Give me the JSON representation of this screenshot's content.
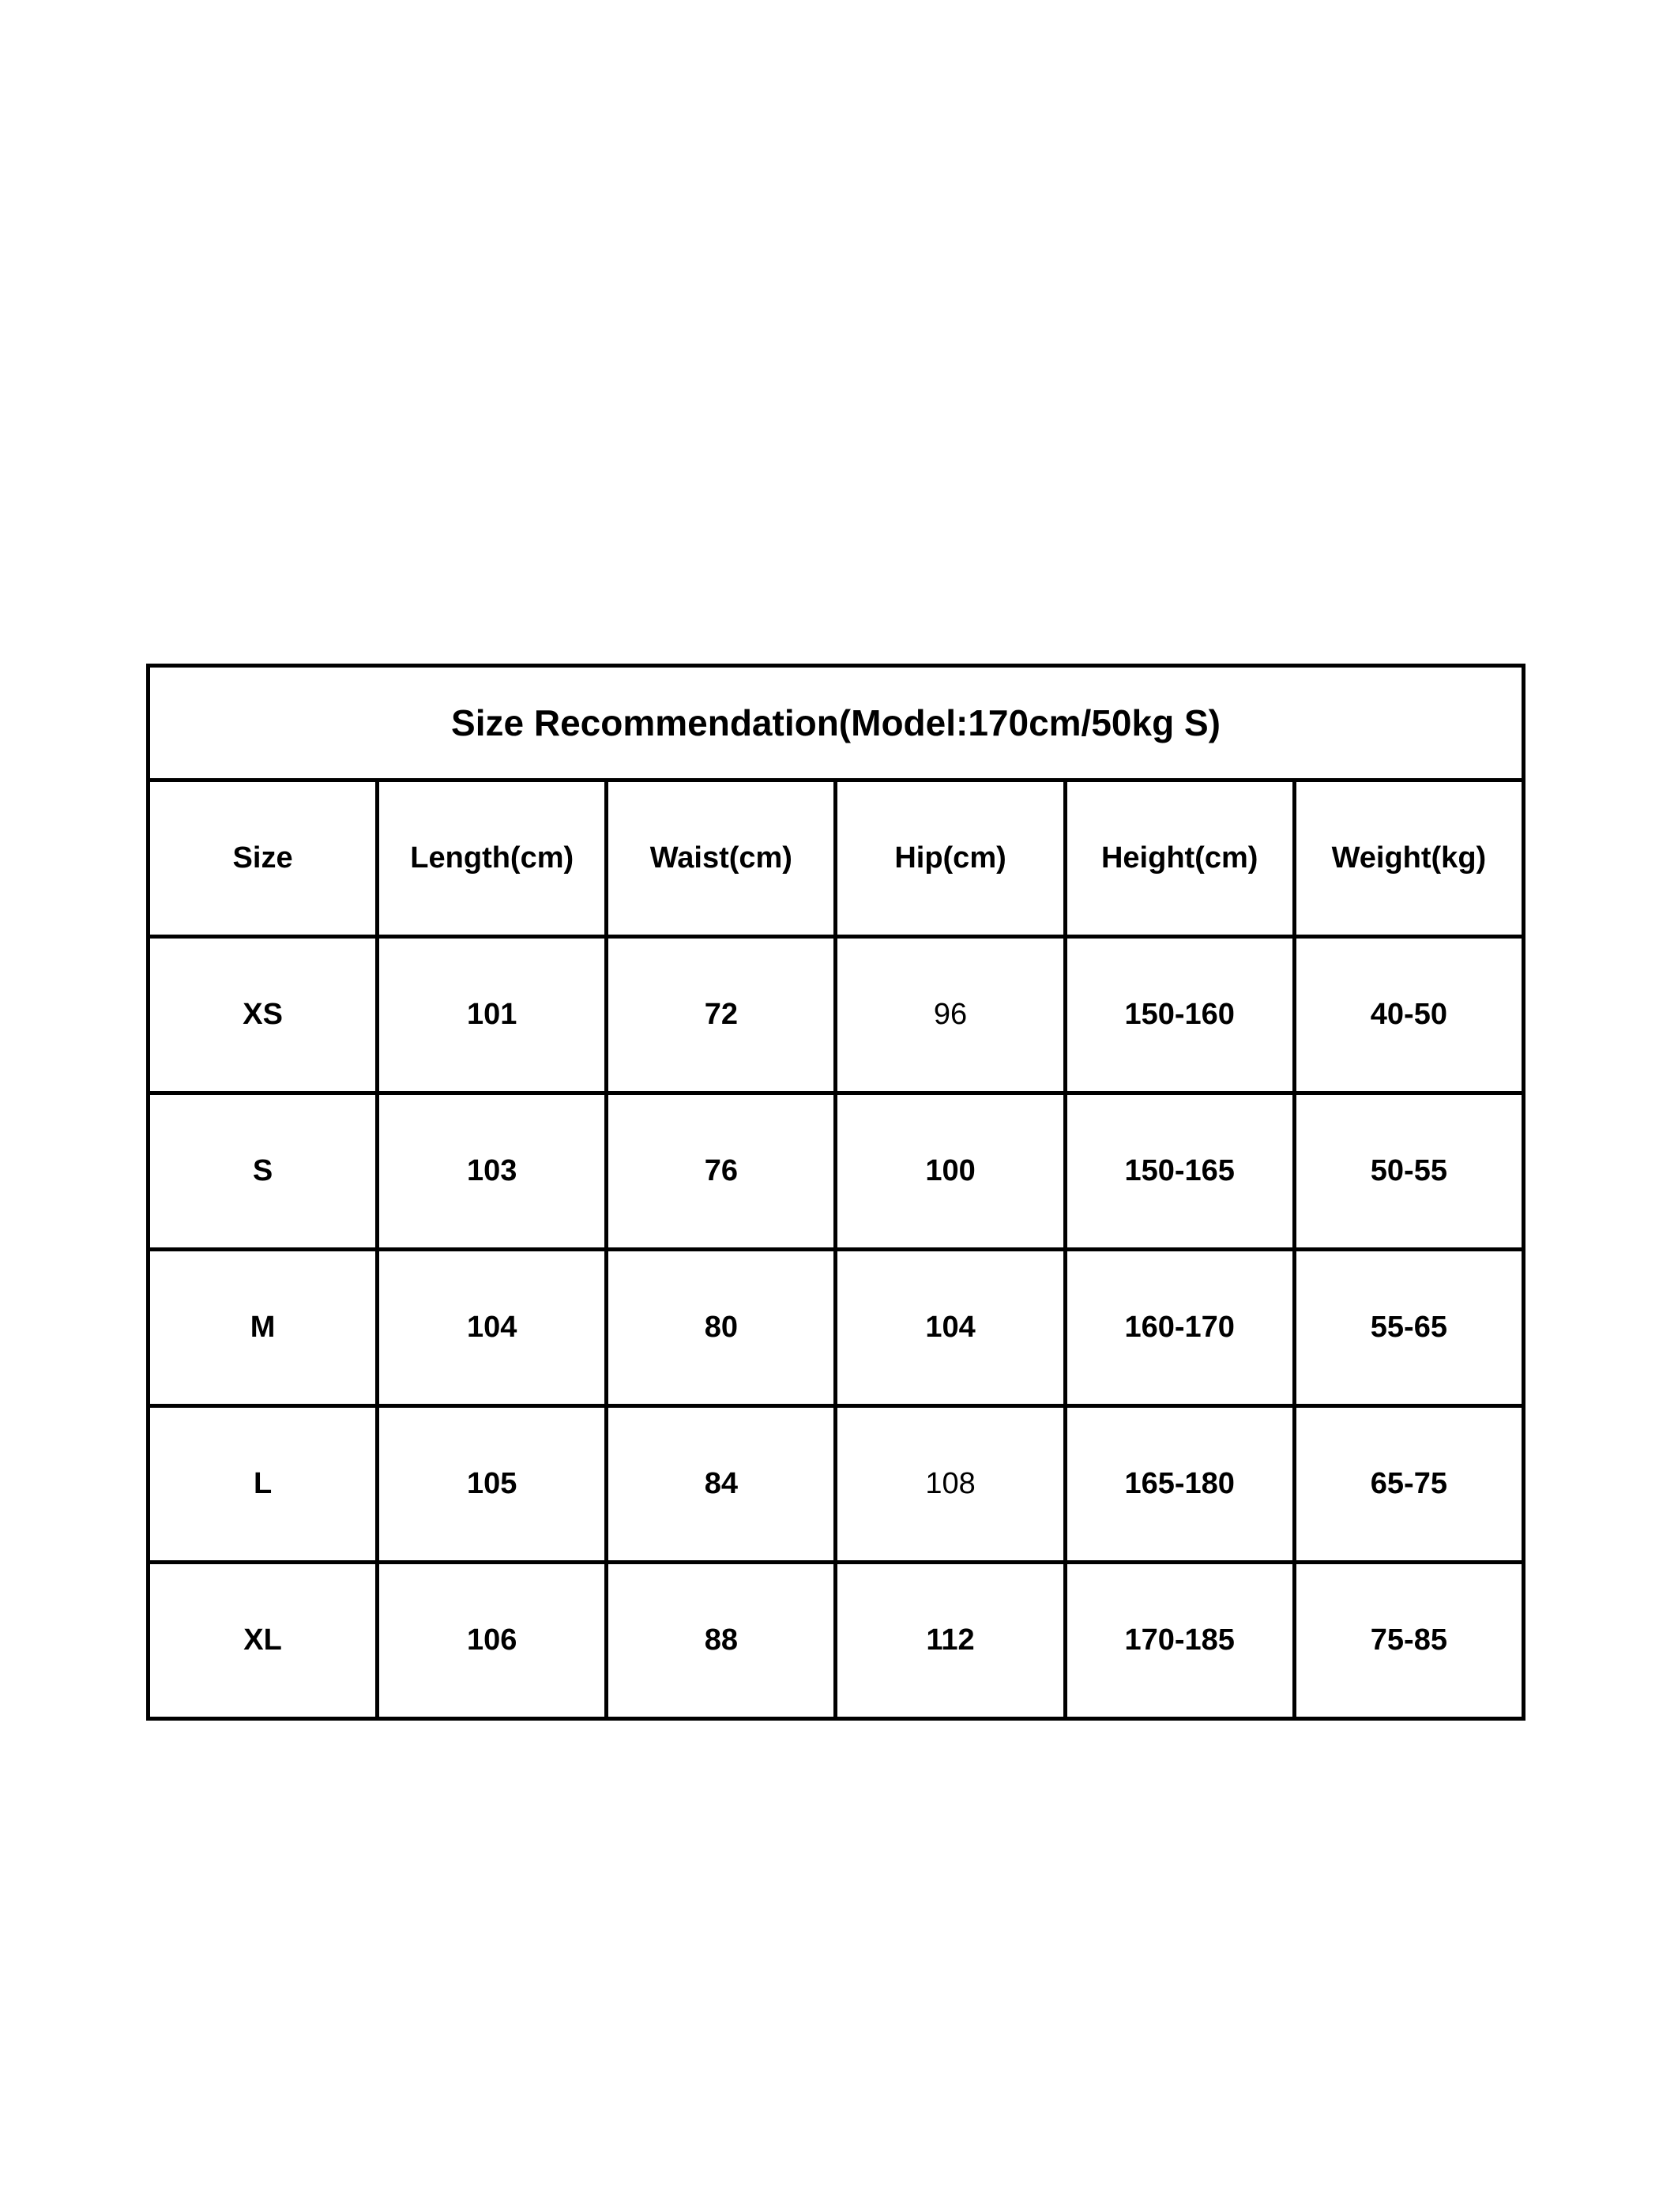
{
  "table": {
    "title": "Size Recommendation(Model:170cm/50kg S)",
    "headers": [
      "Size",
      "Length(cm)",
      "Waist(cm)",
      "Hip(cm)",
      "Height(cm)",
      "Weight(kg)"
    ],
    "rows": [
      [
        "XS",
        "101",
        "72",
        "96",
        "150-160",
        "40-50"
      ],
      [
        "S",
        "103",
        "76",
        "100",
        "150-165",
        "50-55"
      ],
      [
        "M",
        "104",
        "80",
        "104",
        "160-170",
        "55-65"
      ],
      [
        "L",
        "105",
        "84",
        "108",
        "165-180",
        "65-75"
      ],
      [
        "XL",
        "106",
        "88",
        "112",
        "170-185",
        "75-85"
      ]
    ]
  }
}
